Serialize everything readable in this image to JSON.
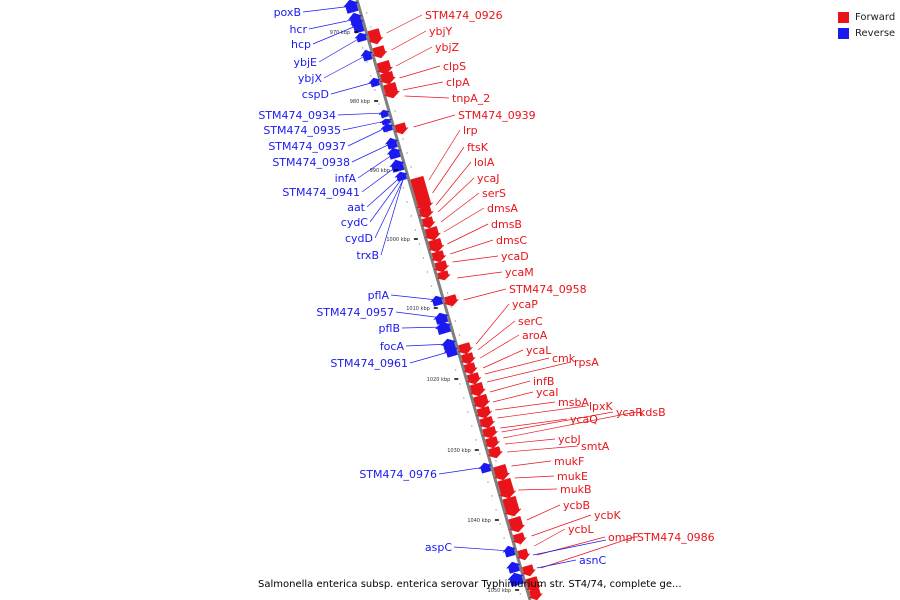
{
  "caption": "Salmonella enterica subsp. enterica serovar Typhimurium str. ST4/74, complete ge...",
  "legend": {
    "forward": {
      "label": "Forward",
      "color": "#e8141a"
    },
    "reverse": {
      "label": "Reverse",
      "color": "#1a1af0"
    }
  },
  "colors": {
    "backbone": "#808080",
    "tick": "#000000"
  },
  "genome_ticks": [
    "970 kbp",
    "980 kbp",
    "990 kbp",
    "1000 kbp",
    "1010 kbp",
    "1020 kbp",
    "1030 kbp",
    "1040 kbp",
    "1050 kbp"
  ],
  "reverse_labels": [
    "poxB",
    "hcr",
    "hcp",
    "ybjE",
    "ybjX",
    "cspD",
    "STM474_0934",
    "STM474_0935",
    "STM474_0937",
    "STM474_0938",
    "infA",
    "STM474_0941",
    "aat",
    "cydC",
    "cydD",
    "trxB",
    "pflA",
    "STM474_0957",
    "pflB",
    "focA",
    "STM474_0961",
    "STM474_0976",
    "aspC"
  ],
  "forward_labels": [
    "STM474_0926",
    "ybjY",
    "ybjZ",
    "clpS",
    "clpA",
    "tnpA_2",
    "STM474_0939",
    "lrp",
    "ftsK",
    "lolA",
    "ycaJ",
    "serS",
    "dmsA",
    "dmsB",
    "dmsC",
    "ycaD",
    "ycaM",
    "STM474_0958",
    "ycaP",
    "serC",
    "aroA",
    "ycaL",
    "cmk",
    "rpsA",
    "infB",
    "ycaI",
    "msbA",
    "lpxK",
    "ycaQ",
    "ycaR",
    "kdsB",
    "ycbJ",
    "smtA",
    "mukF",
    "mukE",
    "mukB",
    "ycbB",
    "ycbK",
    "ycbL",
    "ompF",
    "STM474_0986"
  ],
  "right_labels": [
    "asnC"
  ]
}
